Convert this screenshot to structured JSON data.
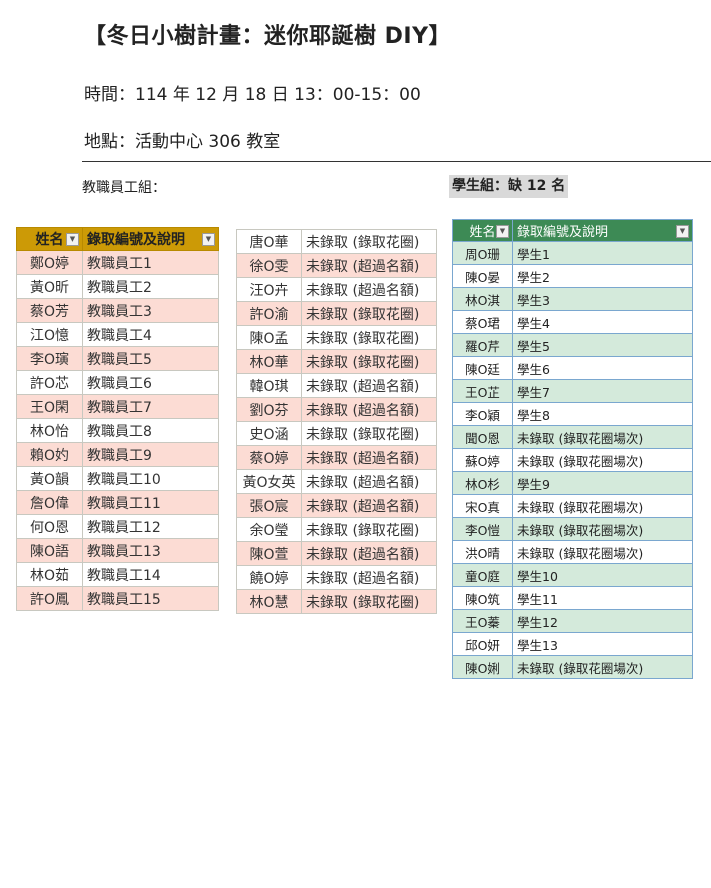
{
  "header": {
    "title": "【冬日小樹計畫：迷你耶誕樹 DIY】",
    "time": "時間：114 年 12 月 18 日 13：00-15：00",
    "location": "地點：活動中心 306 教室"
  },
  "staff": {
    "label": "教職員工組：",
    "columns": [
      "姓名",
      "錄取編號及說明"
    ],
    "rows": [
      [
        "鄭O婷",
        "教職員工1"
      ],
      [
        "黃O昕",
        "教職員工2"
      ],
      [
        "蔡O芳",
        "教職員工3"
      ],
      [
        "江O憶",
        "教職員工4"
      ],
      [
        "李O璌",
        "教職員工5"
      ],
      [
        "許O芯",
        "教職員工6"
      ],
      [
        "王O閑",
        "教職員工7"
      ],
      [
        "林O怡",
        "教職員工8"
      ],
      [
        "賴O妁",
        "教職員工9"
      ],
      [
        "黃O韻",
        "教職員工10"
      ],
      [
        "詹O偉",
        "教職員工11"
      ],
      [
        "何O恩",
        "教職員工12"
      ],
      [
        "陳O語",
        "教職員工13"
      ],
      [
        "林O茹",
        "教職員工14"
      ],
      [
        "許O鳳",
        "教職員工15"
      ]
    ],
    "rows_continued": [
      [
        "唐O華",
        "未錄取 (錄取花圈)"
      ],
      [
        "徐O雯",
        "未錄取 (超過名額)"
      ],
      [
        "汪O卉",
        "未錄取 (超過名額)"
      ],
      [
        "許O渝",
        "未錄取 (錄取花圈)"
      ],
      [
        "陳O孟",
        "未錄取 (錄取花圈)"
      ],
      [
        "林O華",
        "未錄取 (錄取花圈)"
      ],
      [
        "韓O琪",
        "未錄取 (超過名額)"
      ],
      [
        "劉O芬",
        "未錄取 (超過名額)"
      ],
      [
        "史O涵",
        "未錄取 (錄取花圈)"
      ],
      [
        "蔡O婷",
        "未錄取 (超過名額)"
      ],
      [
        "黃O女英",
        "未錄取 (超過名額)"
      ],
      [
        "張O宸",
        "未錄取 (超過名額)"
      ],
      [
        "余O瑩",
        "未錄取 (錄取花圈)"
      ],
      [
        "陳O萱",
        "未錄取 (超過名額)"
      ],
      [
        "饒O婷",
        "未錄取 (超過名額)"
      ],
      [
        "林O慧",
        "未錄取 (錄取花圈)"
      ]
    ]
  },
  "students": {
    "label": "學生組：缺 12 名",
    "columns": [
      "姓名",
      "錄取編號及說明"
    ],
    "rows": [
      [
        "周O珊",
        "學生1"
      ],
      [
        "陳O晏",
        "學生2"
      ],
      [
        "林O淇",
        "學生3"
      ],
      [
        "蔡O珺",
        "學生4"
      ],
      [
        "羅O芹",
        "學生5"
      ],
      [
        "陳O廷",
        "學生6"
      ],
      [
        "王O芷",
        "學生7"
      ],
      [
        "李O穎",
        "學生8"
      ],
      [
        "聞O恩",
        "未錄取 (錄取花圈場次)"
      ],
      [
        "蘇O婷",
        "未錄取 (錄取花圈場次)"
      ],
      [
        "林O杉",
        "學生9"
      ],
      [
        "宋O真",
        "未錄取 (錄取花圈場次)"
      ],
      [
        "李O愷",
        "未錄取 (錄取花圈場次)"
      ],
      [
        "洪O晴",
        "未錄取 (錄取花圈場次)"
      ],
      [
        "童O庭",
        "學生10"
      ],
      [
        "陳O筑",
        "學生11"
      ],
      [
        "王O蓁",
        "學生12"
      ],
      [
        "邱O妍",
        "學生13"
      ],
      [
        "陳O娳",
        "未錄取 (錄取花圈場次)"
      ]
    ]
  },
  "colors": {
    "staff_header": "#cc9a06",
    "staff_stripe": "#fcdcd4",
    "student_header": "#3d8a55",
    "student_stripe": "#d4eadb"
  }
}
